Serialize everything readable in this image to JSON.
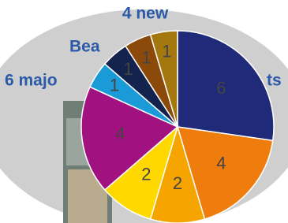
{
  "chart_data": {
    "type": "pie",
    "texts": [
      "4 new",
      "Bea",
      "6 majo",
      "ts"
    ],
    "values": [
      6,
      4,
      2,
      2,
      4,
      1,
      1,
      1,
      1
    ],
    "colors": [
      "#1f2a78",
      "#ee7d0e",
      "#f5a400",
      "#ffd800",
      "#a1117f",
      "#1a9ad6",
      "#14224e",
      "#8c4a0a",
      "#a5780f"
    ]
  }
}
